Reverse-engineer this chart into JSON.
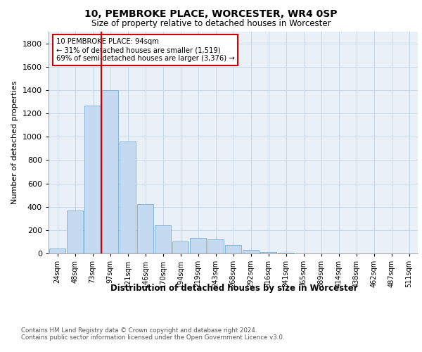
{
  "title": "10, PEMBROKE PLACE, WORCESTER, WR4 0SP",
  "subtitle": "Size of property relative to detached houses in Worcester",
  "xlabel": "Distribution of detached houses by size in Worcester",
  "ylabel": "Number of detached properties",
  "bar_color": "#c5d9f0",
  "bar_edge_color": "#7bafd4",
  "grid_color": "#c8d8e8",
  "bg_color": "#eaf0f8",
  "annotation_box_color": "#cc0000",
  "annotation_text": "10 PEMBROKE PLACE: 94sqm\n← 31% of detached houses are smaller (1,519)\n69% of semi-detached houses are larger (3,376) →",
  "vline_color": "#cc0000",
  "categories": [
    "24sqm",
    "48sqm",
    "73sqm",
    "97sqm",
    "121sqm",
    "146sqm",
    "170sqm",
    "194sqm",
    "219sqm",
    "243sqm",
    "268sqm",
    "292sqm",
    "316sqm",
    "341sqm",
    "365sqm",
    "389sqm",
    "414sqm",
    "438sqm",
    "462sqm",
    "487sqm",
    "511sqm"
  ],
  "values": [
    45,
    370,
    1265,
    1400,
    960,
    420,
    240,
    100,
    130,
    120,
    75,
    30,
    15,
    5,
    0,
    0,
    0,
    0,
    0,
    0,
    0
  ],
  "n_bins": 21,
  "property_bin": 3,
  "ylim": [
    0,
    1900
  ],
  "yticks": [
    0,
    200,
    400,
    600,
    800,
    1000,
    1200,
    1400,
    1600,
    1800
  ],
  "footer_text": "Contains HM Land Registry data © Crown copyright and database right 2024.\nContains public sector information licensed under the Open Government Licence v3.0.",
  "figsize": [
    6.0,
    5.0
  ],
  "dpi": 100
}
